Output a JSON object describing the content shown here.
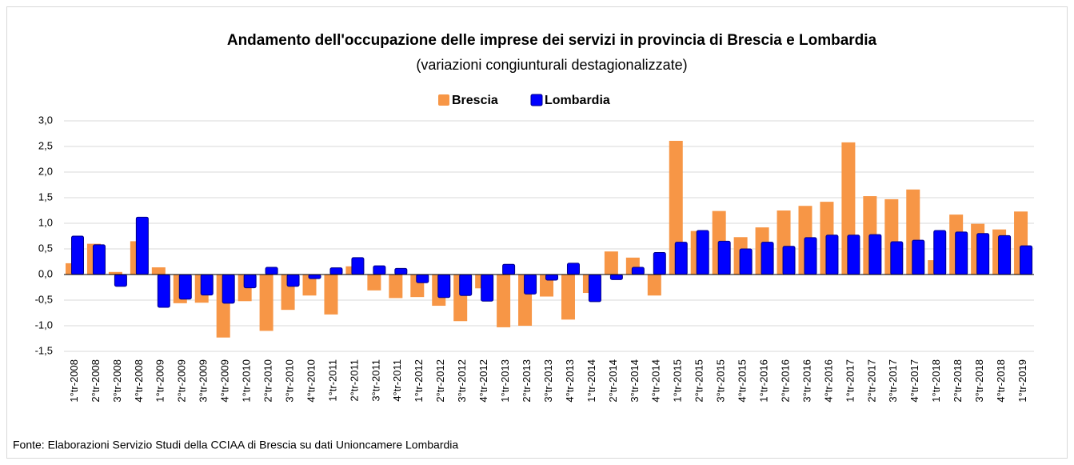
{
  "chart_data": {
    "type": "bar",
    "title": "Andamento dell'occupazione delle imprese dei servizi in provincia di Brescia e Lombardia",
    "subtitle": "(variazioni congiunturali destagionalizzate)",
    "source": "Fonte: Elaborazioni Servizio Studi della CCIAA di Brescia su dati Unioncamere Lombardia",
    "categories": [
      "1°tr-2008",
      "2°tr-2008",
      "3°tr-2008",
      "4°tr-2008",
      "1°tr-2009",
      "2°tr-2009",
      "3°tr-2009",
      "4°tr-2009",
      "1°tr-2010",
      "2°tr-2010",
      "3°tr-2010",
      "4°tr-2010",
      "1°tr-2011",
      "2°tr-2011",
      "3°tr-2011",
      "4°tr-2011",
      "1°tr-2012",
      "2°tr-2012",
      "3°tr-2012",
      "4°tr-2012",
      "1°tr-2013",
      "2°tr-2013",
      "3°tr-2013",
      "4°tr-2013",
      "1°tr-2014",
      "2°tr-2014",
      "3°tr-2014",
      "4°tr-2014",
      "1°tr-2015",
      "2°tr-2015",
      "3°tr-2015",
      "4°tr-2015",
      "1°tr-2016",
      "2°tr-2016",
      "3°tr-2016",
      "4°tr-2016",
      "1°tr-2017",
      "2°tr-2017",
      "3°tr-2017",
      "4°tr-2017",
      "1°tr-2018",
      "2°tr-2018",
      "3°tr-2018",
      "4°tr-2018",
      "1°tr-2019"
    ],
    "series": [
      {
        "name": "Brescia",
        "color": "#f79646",
        "values": [
          0.22,
          0.6,
          0.05,
          0.65,
          0.14,
          -0.56,
          -0.55,
          -1.23,
          -0.52,
          -1.1,
          -0.69,
          -0.41,
          -0.78,
          0.16,
          -0.31,
          -0.46,
          -0.44,
          -0.61,
          -0.91,
          -0.27,
          -1.03,
          -1.0,
          -0.43,
          -0.88,
          -0.36,
          0.45,
          0.33,
          -0.41,
          2.61,
          0.85,
          1.24,
          0.73,
          0.92,
          1.25,
          1.34,
          1.42,
          2.58,
          1.53,
          1.47,
          1.66,
          0.28,
          1.17,
          0.99,
          0.88,
          1.23
        ]
      },
      {
        "name": "Lombardia",
        "color": "#0000ff",
        "values": [
          0.75,
          0.58,
          -0.23,
          1.12,
          -0.64,
          -0.48,
          -0.4,
          -0.56,
          -0.26,
          0.14,
          -0.23,
          -0.08,
          0.13,
          0.33,
          0.17,
          0.12,
          -0.16,
          -0.45,
          -0.41,
          -0.52,
          0.2,
          -0.38,
          -0.11,
          0.22,
          -0.53,
          -0.1,
          0.14,
          0.43,
          0.63,
          0.86,
          0.65,
          0.5,
          0.63,
          0.55,
          0.72,
          0.77,
          0.77,
          0.78,
          0.64,
          0.67,
          0.86,
          0.83,
          0.8,
          0.76,
          0.56
        ]
      }
    ],
    "ylim": [
      -1.5,
      3.0
    ],
    "yticks": [
      {
        "value": -1.5,
        "label": "-1,5"
      },
      {
        "value": -1.0,
        "label": "-1,0"
      },
      {
        "value": -0.5,
        "label": "-0,5"
      },
      {
        "value": 0,
        "label": "0,0"
      },
      {
        "value": 0.5,
        "label": "0,5"
      },
      {
        "value": 1.0,
        "label": "1,0"
      },
      {
        "value": 1.5,
        "label": "1,5"
      },
      {
        "value": 2.0,
        "label": "2,0"
      },
      {
        "value": 2.5,
        "label": "2,5"
      },
      {
        "value": 3.0,
        "label": "3,0"
      }
    ],
    "grid": true,
    "legend": "top"
  }
}
